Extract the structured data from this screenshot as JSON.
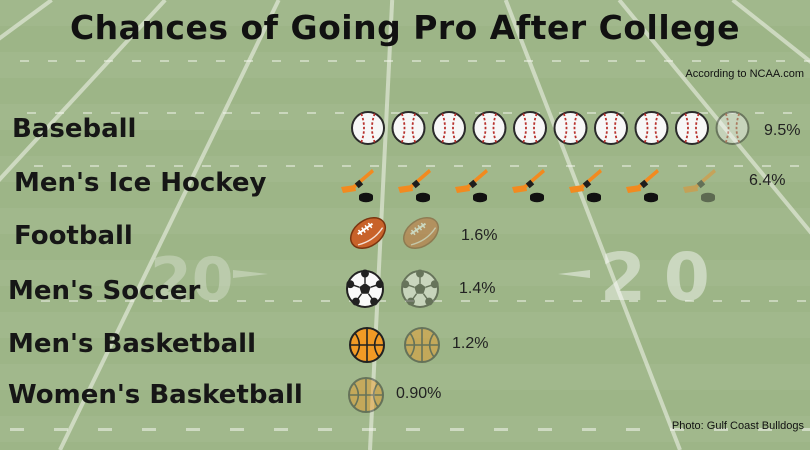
{
  "chart_data": {
    "type": "bar",
    "title": "Chances of Going Pro After College",
    "source": "According to NCAA.com",
    "credit": "Photo:  Gulf Coast Bulldogs",
    "categories": [
      "Baseball",
      "Men's Ice Hockey",
      "Football",
      "Men's Soccer",
      "Men's Basketball",
      "Women's Basketball"
    ],
    "values": [
      9.5,
      6.4,
      1.6,
      1.4,
      1.2,
      0.9
    ],
    "value_labels": [
      "9.5%",
      "6.4%",
      "1.6%",
      "1.4%",
      "1.2%",
      "0.90%"
    ],
    "icons": [
      "baseball-icon",
      "hockey-stick-icon",
      "football-icon",
      "soccer-ball-icon",
      "basketball-icon",
      "basketball-icon"
    ],
    "unit": "%"
  },
  "field": {
    "yard_numbers": [
      "20",
      "20"
    ]
  },
  "colors": {
    "field_green": "#9db587",
    "yard_line": "#f4f6ee",
    "basketball_orange": "#f29a25",
    "football_brown": "#c8622a",
    "stitch_red": "#b8322d",
    "text_dark": "#161616"
  }
}
